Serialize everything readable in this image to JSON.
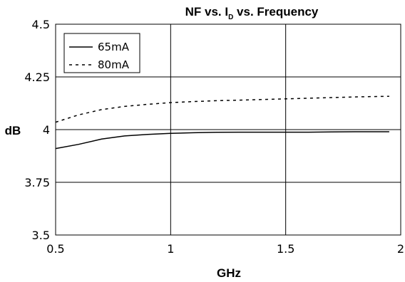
{
  "chart_data": {
    "type": "line",
    "title": {
      "prefix": "NF vs. I",
      "subscript": "D",
      "suffix": " vs. Frequency"
    },
    "xlabel": "GHz",
    "ylabel": "dB",
    "xlim": [
      0.5,
      2
    ],
    "ylim": [
      3.5,
      4.5
    ],
    "x_ticks": [
      0.5,
      1,
      1.5,
      2
    ],
    "x_tick_labels": [
      "0.5",
      "1",
      "1.5",
      "2"
    ],
    "y_ticks": [
      3.5,
      3.75,
      4,
      4.25,
      4.5
    ],
    "y_tick_labels": [
      "3.5",
      "3.75",
      "4",
      "4.25",
      "4.5"
    ],
    "grid": true,
    "legend_position": "top-left",
    "series": [
      {
        "name": "65mA",
        "style": "solid",
        "color": "#000000",
        "points": [
          [
            0.5,
            3.91
          ],
          [
            0.6,
            3.93
          ],
          [
            0.7,
            3.955
          ],
          [
            0.8,
            3.97
          ],
          [
            0.9,
            3.977
          ],
          [
            1.0,
            3.982
          ],
          [
            1.1,
            3.985
          ],
          [
            1.2,
            3.987
          ],
          [
            1.3,
            3.988
          ],
          [
            1.4,
            3.988
          ],
          [
            1.5,
            3.988
          ],
          [
            1.6,
            3.988
          ],
          [
            1.7,
            3.989
          ],
          [
            1.8,
            3.99
          ],
          [
            1.95,
            3.99
          ]
        ]
      },
      {
        "name": "80mA",
        "style": "dashed",
        "color": "#000000",
        "points": [
          [
            0.5,
            4.035
          ],
          [
            0.6,
            4.07
          ],
          [
            0.7,
            4.095
          ],
          [
            0.8,
            4.11
          ],
          [
            0.9,
            4.12
          ],
          [
            1.0,
            4.128
          ],
          [
            1.1,
            4.133
          ],
          [
            1.2,
            4.137
          ],
          [
            1.3,
            4.14
          ],
          [
            1.4,
            4.143
          ],
          [
            1.5,
            4.146
          ],
          [
            1.6,
            4.149
          ],
          [
            1.7,
            4.152
          ],
          [
            1.8,
            4.155
          ],
          [
            1.95,
            4.158
          ]
        ]
      }
    ]
  }
}
